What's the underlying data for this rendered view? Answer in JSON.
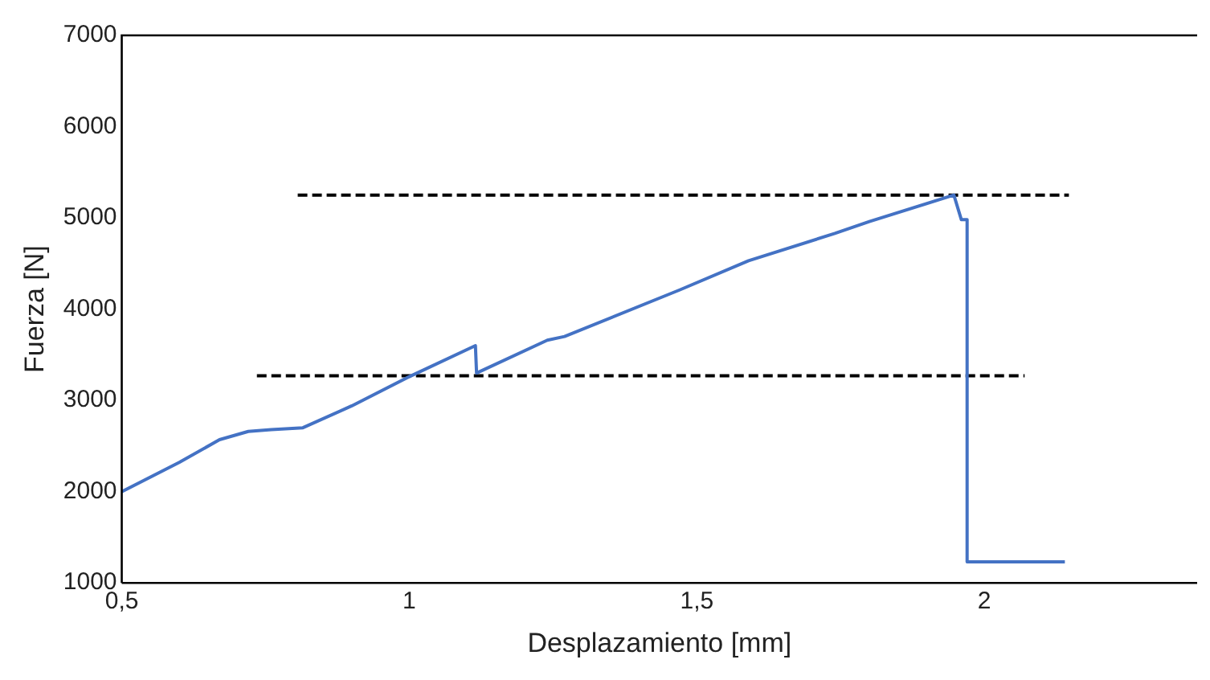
{
  "chart_data": {
    "type": "line",
    "xlabel": "Desplazamiento [mm]",
    "ylabel": "Fuerza [N]",
    "xlim": [
      0.5,
      2.37
    ],
    "xticks": [
      {
        "value": 0.5,
        "label": "0,5"
      },
      1,
      {
        "value": 1.5,
        "label": "1,5"
      },
      2
    ],
    "ylim": [
      1000,
      7000
    ],
    "yticks": [
      1000,
      2000,
      3000,
      4000,
      5000,
      6000,
      7000
    ],
    "grid": false,
    "legend": false,
    "marker": "none",
    "series": [
      {
        "color": "#4472c4",
        "line_style": "solid",
        "x": [
          0.5,
          0.6,
          0.67,
          0.72,
          0.76,
          0.815,
          0.9,
          1.0,
          1.115,
          1.117,
          1.24,
          1.27,
          1.47,
          1.59,
          1.74,
          1.8,
          1.947,
          1.96,
          1.97,
          1.97,
          2.14
        ],
        "values": [
          2000,
          2320,
          2570,
          2660,
          2680,
          2700,
          2940,
          3260,
          3600,
          3300,
          3660,
          3700,
          4210,
          4530,
          4830,
          4960,
          5250,
          4980,
          4980,
          1230,
          1230
        ]
      },
      {
        "color": "#000000",
        "line_style": "dashed",
        "x": [
          0.806,
          2.147
        ],
        "values": [
          5250,
          5250
        ]
      },
      {
        "color": "#000000",
        "line_style": "dashed",
        "x": [
          0.735,
          2.07
        ],
        "values": [
          3270,
          3270
        ]
      }
    ]
  }
}
